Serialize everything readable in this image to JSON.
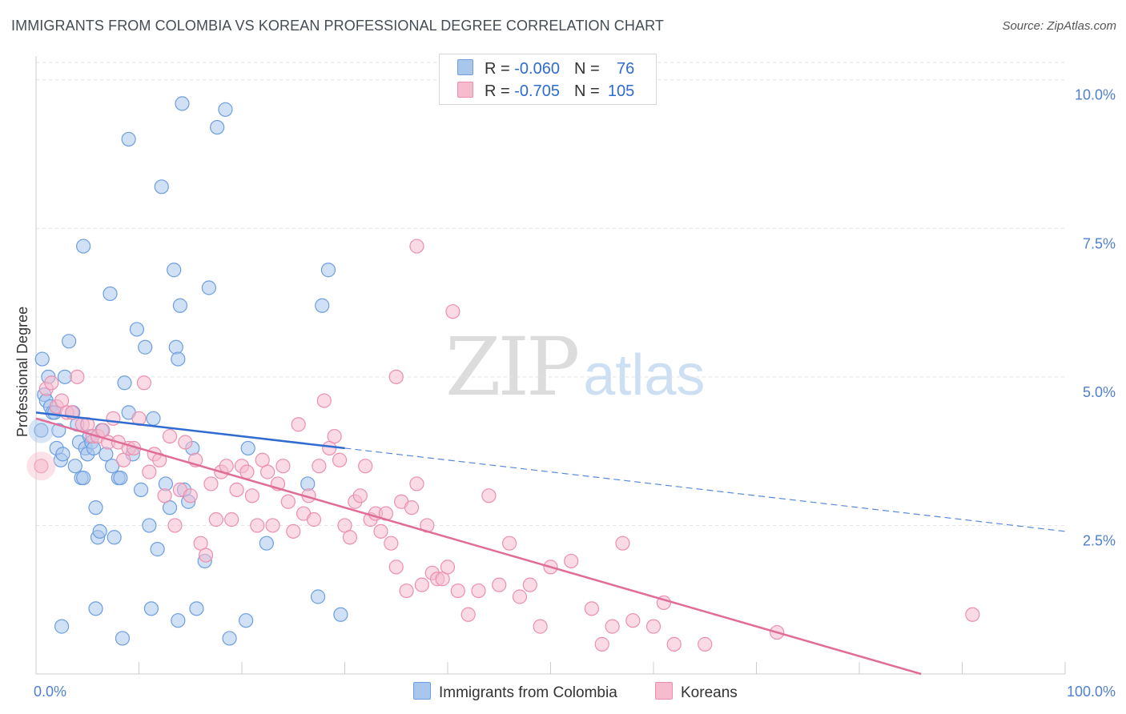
{
  "header": {
    "title": "IMMIGRANTS FROM COLOMBIA VS KOREAN PROFESSIONAL DEGREE CORRELATION CHART",
    "source": "Source: ZipAtlas.com"
  },
  "watermark": {
    "zip": "ZIP",
    "atlas": "atlas"
  },
  "legend": {
    "rows": [
      {
        "r_label": "R = ",
        "r_value": "-0.060",
        "n_label": "N = ",
        "n_value": "76"
      },
      {
        "r_label": "R = ",
        "r_value": "-0.705",
        "n_label": "N = ",
        "n_value": "105"
      }
    ]
  },
  "bottom_legend": {
    "series1": "Immigrants from Colombia",
    "series2": "Koreans"
  },
  "colors": {
    "blue_fill": "#a9c6ec",
    "blue_stroke": "#6d9ee0",
    "blue_line": "#2f6bd0",
    "pink_fill": "#f6bccd",
    "pink_stroke": "#ec8fae",
    "pink_line": "#e06c97",
    "tick": "#4f7fd0",
    "grid": "#e2e2e2"
  },
  "chart_data": {
    "type": "scatter",
    "title": "IMMIGRANTS FROM COLOMBIA VS KOREAN PROFESSIONAL DEGREE CORRELATION CHART",
    "xlabel": "",
    "ylabel": "Professional Degree",
    "xlim": [
      0,
      100
    ],
    "ylim": [
      0,
      10.4
    ],
    "x_ticks": [
      {
        "v": 0,
        "label": "0.0%"
      },
      {
        "v": 100,
        "label": "100.0%"
      }
    ],
    "y_ticks": [
      {
        "v": 2.5,
        "label": "2.5%"
      },
      {
        "v": 5.0,
        "label": "5.0%"
      },
      {
        "v": 7.5,
        "label": "7.5%"
      },
      {
        "v": 10.0,
        "label": "10.0%"
      }
    ],
    "grid": true,
    "legend_position": "top-center",
    "series": [
      {
        "name": "Immigrants from Colombia",
        "r": -0.06,
        "n": 76,
        "trend": {
          "solid_x": [
            0,
            30
          ],
          "dashed_x": [
            30,
            100
          ],
          "y_at_0": 4.4,
          "y_at_100": 2.4
        },
        "points": [
          [
            0.5,
            4.1
          ],
          [
            0.8,
            4.7
          ],
          [
            0.6,
            5.3
          ],
          [
            1.2,
            5.0
          ],
          [
            1.0,
            4.6
          ],
          [
            1.4,
            4.5
          ],
          [
            1.6,
            4.4
          ],
          [
            1.8,
            4.4
          ],
          [
            2.0,
            3.8
          ],
          [
            2.2,
            4.1
          ],
          [
            2.4,
            3.6
          ],
          [
            2.6,
            3.7
          ],
          [
            2.8,
            5.0
          ],
          [
            3.2,
            5.6
          ],
          [
            3.6,
            4.4
          ],
          [
            3.8,
            3.5
          ],
          [
            4.0,
            4.2
          ],
          [
            4.2,
            3.9
          ],
          [
            4.4,
            3.3
          ],
          [
            4.6,
            3.3
          ],
          [
            4.8,
            3.8
          ],
          [
            5.0,
            3.7
          ],
          [
            5.2,
            4.0
          ],
          [
            5.4,
            3.9
          ],
          [
            5.6,
            3.8
          ],
          [
            5.8,
            2.8
          ],
          [
            6.0,
            2.3
          ],
          [
            6.2,
            2.4
          ],
          [
            6.4,
            4.1
          ],
          [
            6.8,
            3.7
          ],
          [
            7.2,
            6.4
          ],
          [
            7.4,
            3.5
          ],
          [
            7.6,
            2.3
          ],
          [
            8.0,
            3.3
          ],
          [
            8.2,
            3.3
          ],
          [
            8.6,
            4.9
          ],
          [
            9.0,
            4.4
          ],
          [
            9.4,
            3.7
          ],
          [
            9.8,
            5.8
          ],
          [
            10.2,
            3.1
          ],
          [
            10.6,
            5.5
          ],
          [
            11.0,
            2.5
          ],
          [
            11.4,
            4.3
          ],
          [
            11.8,
            2.1
          ],
          [
            12.2,
            8.2
          ],
          [
            12.6,
            3.2
          ],
          [
            13.0,
            2.8
          ],
          [
            13.4,
            6.8
          ],
          [
            13.6,
            5.5
          ],
          [
            13.8,
            5.3
          ],
          [
            14.0,
            6.2
          ],
          [
            14.4,
            3.1
          ],
          [
            14.8,
            2.9
          ],
          [
            15.2,
            3.8
          ],
          [
            15.6,
            1.1
          ],
          [
            16.4,
            1.9
          ],
          [
            17.6,
            9.2
          ],
          [
            18.4,
            9.5
          ],
          [
            4.6,
            7.2
          ],
          [
            9.0,
            9.0
          ],
          [
            14.2,
            9.6
          ],
          [
            16.8,
            6.5
          ],
          [
            20.6,
            3.8
          ],
          [
            22.4,
            2.2
          ],
          [
            27.8,
            6.2
          ],
          [
            28.4,
            6.8
          ],
          [
            27.4,
            1.3
          ],
          [
            26.4,
            3.2
          ],
          [
            29.6,
            1.0
          ],
          [
            13.8,
            0.9
          ],
          [
            8.4,
            0.6
          ],
          [
            11.2,
            1.1
          ],
          [
            20.4,
            0.9
          ],
          [
            5.8,
            1.1
          ],
          [
            18.8,
            0.6
          ],
          [
            2.5,
            0.8
          ]
        ]
      },
      {
        "name": "Koreans",
        "r": -0.705,
        "n": 105,
        "trend": {
          "solid_x": [
            0,
            86
          ],
          "y_at_0": 4.3,
          "y_at_86": 0.0
        },
        "points": [
          [
            0.5,
            3.5
          ],
          [
            1.0,
            4.8
          ],
          [
            1.5,
            4.9
          ],
          [
            2.0,
            4.5
          ],
          [
            2.5,
            4.6
          ],
          [
            3.0,
            4.4
          ],
          [
            3.5,
            4.4
          ],
          [
            4.0,
            5.0
          ],
          [
            4.5,
            4.2
          ],
          [
            5.0,
            4.2
          ],
          [
            5.5,
            4.0
          ],
          [
            6.0,
            4.0
          ],
          [
            6.5,
            4.1
          ],
          [
            7.0,
            3.9
          ],
          [
            7.5,
            4.3
          ],
          [
            8.0,
            3.9
          ],
          [
            8.5,
            3.6
          ],
          [
            9.0,
            3.8
          ],
          [
            9.5,
            3.8
          ],
          [
            10.0,
            4.3
          ],
          [
            10.5,
            4.9
          ],
          [
            11.0,
            3.4
          ],
          [
            11.5,
            3.7
          ],
          [
            12.0,
            3.6
          ],
          [
            12.5,
            3.0
          ],
          [
            13.0,
            4.0
          ],
          [
            13.5,
            2.5
          ],
          [
            14.0,
            3.1
          ],
          [
            14.5,
            3.9
          ],
          [
            15.0,
            3.0
          ],
          [
            15.5,
            3.6
          ],
          [
            16.0,
            2.2
          ],
          [
            16.5,
            2.0
          ],
          [
            17.0,
            3.2
          ],
          [
            17.5,
            2.6
          ],
          [
            18.0,
            3.4
          ],
          [
            18.5,
            3.5
          ],
          [
            19.0,
            2.6
          ],
          [
            19.5,
            3.1
          ],
          [
            20.0,
            3.5
          ],
          [
            20.5,
            3.4
          ],
          [
            21.0,
            3.0
          ],
          [
            21.5,
            2.5
          ],
          [
            22.0,
            3.6
          ],
          [
            22.5,
            3.4
          ],
          [
            23.0,
            2.5
          ],
          [
            23.5,
            3.2
          ],
          [
            24.0,
            3.5
          ],
          [
            24.5,
            2.9
          ],
          [
            25.0,
            2.4
          ],
          [
            25.5,
            4.2
          ],
          [
            26.0,
            2.7
          ],
          [
            26.5,
            3.0
          ],
          [
            27.0,
            2.6
          ],
          [
            27.5,
            3.5
          ],
          [
            28.0,
            4.6
          ],
          [
            28.5,
            3.8
          ],
          [
            29.0,
            4.0
          ],
          [
            29.5,
            3.6
          ],
          [
            30.0,
            2.5
          ],
          [
            30.5,
            2.3
          ],
          [
            31.0,
            2.9
          ],
          [
            31.5,
            3.0
          ],
          [
            32.0,
            3.5
          ],
          [
            32.5,
            2.6
          ],
          [
            33.0,
            2.7
          ],
          [
            33.5,
            2.4
          ],
          [
            34.0,
            2.7
          ],
          [
            34.5,
            2.2
          ],
          [
            35.0,
            1.8
          ],
          [
            35.5,
            2.9
          ],
          [
            36.0,
            1.4
          ],
          [
            36.5,
            2.8
          ],
          [
            37.0,
            3.2
          ],
          [
            37.5,
            1.5
          ],
          [
            38.0,
            2.5
          ],
          [
            38.5,
            1.7
          ],
          [
            39.0,
            1.6
          ],
          [
            39.5,
            1.6
          ],
          [
            40.0,
            1.8
          ],
          [
            41.0,
            1.4
          ],
          [
            42.0,
            1.0
          ],
          [
            43.0,
            1.4
          ],
          [
            44.0,
            3.0
          ],
          [
            45.0,
            1.5
          ],
          [
            46.0,
            2.2
          ],
          [
            47.0,
            1.3
          ],
          [
            48.0,
            1.5
          ],
          [
            49.0,
            0.8
          ],
          [
            50.0,
            1.8
          ],
          [
            52.0,
            1.9
          ],
          [
            54.0,
            1.1
          ],
          [
            55.0,
            0.5
          ],
          [
            56.0,
            0.8
          ],
          [
            57.0,
            2.2
          ],
          [
            58.0,
            0.9
          ],
          [
            60.0,
            0.8
          ],
          [
            61.0,
            1.2
          ],
          [
            62.0,
            0.5
          ],
          [
            65.0,
            0.5
          ],
          [
            72.0,
            0.7
          ],
          [
            91.0,
            1.0
          ],
          [
            37.0,
            7.2
          ],
          [
            40.5,
            6.1
          ],
          [
            35.0,
            5.0
          ]
        ]
      }
    ]
  }
}
